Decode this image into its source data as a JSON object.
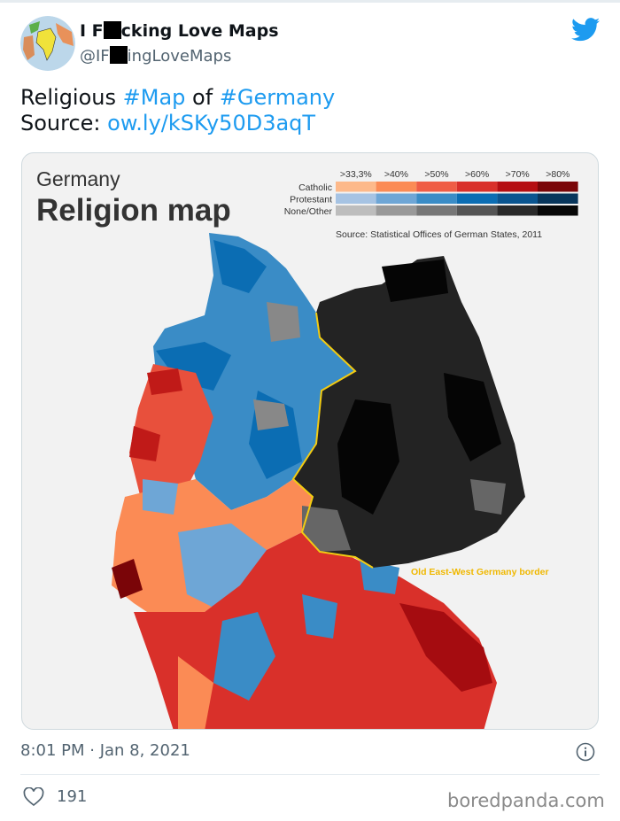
{
  "tweet": {
    "display_name_pre": "I F",
    "display_name_post": "cking Love Maps",
    "handle_pre": "@IF",
    "handle_post": "ingLoveMaps",
    "text_1": "Religious ",
    "hashtag_1": "#Map",
    "text_2": " of ",
    "hashtag_2": "#Germany",
    "source_label": "Source: ",
    "source_link": "ow.ly/kSKy50D3aqT",
    "timestamp": "8:01 PM · Jan 8, 2021",
    "likes": "191"
  },
  "map": {
    "title_1": "Germany",
    "title_2": "Religion map",
    "legend": {
      "thresholds": [
        ">33,3%",
        ">40%",
        ">50%",
        ">60%",
        ">70%",
        ">80%"
      ],
      "rows": [
        {
          "label": "Catholic",
          "colors": [
            "#fdb98a",
            "#fb8b55",
            "#ef5d45",
            "#d9302a",
            "#b50e12",
            "#7a0508"
          ]
        },
        {
          "label": "Protestant",
          "colors": [
            "#a6c3e3",
            "#6ea6d6",
            "#3a8cc6",
            "#0b6db3",
            "#0a5590",
            "#08365c"
          ]
        },
        {
          "label": "None/Other",
          "colors": [
            "#bdbdbd",
            "#999999",
            "#777777",
            "#555555",
            "#2a2a2a",
            "#080808"
          ]
        }
      ],
      "source": "Source: Statistical Offices of German States, 2011"
    },
    "border_label": "Old East-West Germany border",
    "border_color": "#f3cc12"
  },
  "watermark": "boredpanda.com"
}
